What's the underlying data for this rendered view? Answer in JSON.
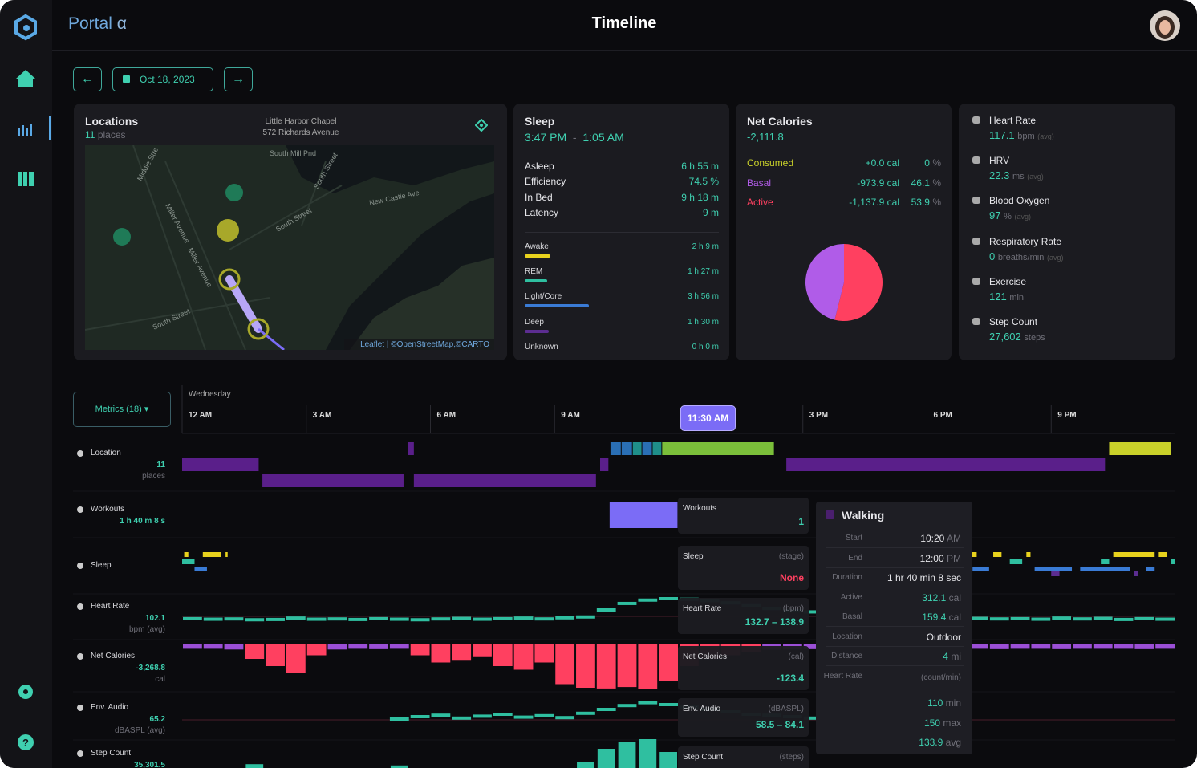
{
  "header": {
    "brand": "Portal",
    "brand_suffix": "α",
    "title": "Timeline"
  },
  "date": "Oct 18, 2023",
  "locations": {
    "title": "Locations",
    "count": "11",
    "count_unit": "places",
    "place_name": "Little Harbor Chapel",
    "place_address": "572 Richards Avenue",
    "map_labels": [
      "Middle Stre",
      "Miller Avenue",
      "Miller Avenue",
      "South Mill Pnd",
      "South Street",
      "South Street",
      "New Castle Ave",
      "South Street"
    ],
    "attribution": "Leaflet | ©OpenStreetMap,©CARTO"
  },
  "sleep": {
    "title": "Sleep",
    "start": "3:47 PM",
    "separator": "-",
    "end": "1:05 AM",
    "summary": [
      {
        "label": "Asleep",
        "value": "6 h 55 m"
      },
      {
        "label": "Efficiency",
        "value": "74.5 %"
      },
      {
        "label": "In Bed",
        "value": "9 h 18 m"
      },
      {
        "label": "Latency",
        "value": "9 m"
      }
    ],
    "stages": [
      {
        "label": "Awake",
        "value": "2 h 9 m",
        "color": "#e8d21d"
      },
      {
        "label": "REM",
        "value": "1 h 27 m",
        "color": "#2fbfa0"
      },
      {
        "label": "Light/Core",
        "value": "3 h 56 m",
        "color": "#3a7bd5"
      },
      {
        "label": "Deep",
        "value": "1 h 30 m",
        "color": "#5c2d91"
      },
      {
        "label": "Unknown",
        "value": "0 h 0 m",
        "color": "#555555"
      }
    ]
  },
  "net_calories": {
    "title": "Net Calories",
    "total": "-2,111.8",
    "percent_unit": "%",
    "rows": [
      {
        "label": "Consumed",
        "value": "+0.0 cal",
        "percent": 0,
        "color": "#c9d12a"
      },
      {
        "label": "Basal",
        "value": "-973.9 cal",
        "percent": 46.1,
        "color": "#b05ce8"
      },
      {
        "label": "Active",
        "value": "-1,137.9 cal",
        "percent": 53.9,
        "color": "#ff4060"
      }
    ]
  },
  "vitals": [
    {
      "label": "Heart Rate",
      "value": "117.1",
      "unit": "bpm",
      "note": "(avg)"
    },
    {
      "label": "HRV",
      "value": "22.3",
      "unit": "ms",
      "note": "(avg)"
    },
    {
      "label": "Blood Oxygen",
      "value": "97",
      "unit": "%",
      "note": "(avg)"
    },
    {
      "label": "Respiratory Rate",
      "value": "0",
      "unit": "breaths/min",
      "note": "(avg)"
    },
    {
      "label": "Exercise",
      "value": "121",
      "unit": "min"
    },
    {
      "label": "Step Count",
      "value": "27,602",
      "unit": "steps"
    }
  ],
  "timeline": {
    "metrics_button": "Metrics (18)",
    "day": "Wednesday",
    "current_time": "11:30 AM",
    "xlim": [
      0,
      24
    ],
    "xticks": [
      {
        "value": 0,
        "label": "12 AM"
      },
      {
        "value": 3,
        "label": "3 AM"
      },
      {
        "value": 6,
        "label": "6 AM"
      },
      {
        "value": 9,
        "label": "9 AM"
      },
      {
        "value": 15,
        "label": "3 PM"
      },
      {
        "value": 18,
        "label": "6 PM"
      },
      {
        "value": 21,
        "label": "9 PM"
      }
    ],
    "rows": [
      {
        "label": "Location",
        "value": "11",
        "unit": "places"
      },
      {
        "label": "Workouts",
        "value": "1 h 40 m 8 s"
      },
      {
        "label": "Sleep"
      },
      {
        "label": "Heart Rate",
        "value": "102.1",
        "unit": "bpm (avg)"
      },
      {
        "label": "Net Calories",
        "value": "-3,268.8",
        "unit": "cal"
      },
      {
        "label": "Env. Audio",
        "value": "65.2",
        "unit": "dBASPL (avg)"
      },
      {
        "label": "Step Count",
        "value": "35,301.5"
      }
    ],
    "location_segments": [
      {
        "start": 0,
        "end": 1.85,
        "lane": 1,
        "color": "#5a1f8a"
      },
      {
        "start": 1.94,
        "end": 5.35,
        "lane": 2,
        "color": "#5a1f8a"
      },
      {
        "start": 5.45,
        "end": 5.6,
        "lane": 0,
        "color": "#5a1f8a"
      },
      {
        "start": 5.6,
        "end": 10.0,
        "lane": 2,
        "color": "#5a1f8a"
      },
      {
        "start": 10.1,
        "end": 10.3,
        "lane": 1,
        "color": "#5a1f8a"
      },
      {
        "start": 10.35,
        "end": 10.6,
        "lane": 0,
        "color": "#2a6fb5"
      },
      {
        "start": 10.62,
        "end": 10.87,
        "lane": 0,
        "color": "#2a6fb5"
      },
      {
        "start": 10.89,
        "end": 11.1,
        "lane": 0,
        "color": "#1f8f8a"
      },
      {
        "start": 11.12,
        "end": 11.35,
        "lane": 0,
        "color": "#2a6fb5"
      },
      {
        "start": 11.37,
        "end": 11.58,
        "lane": 0,
        "color": "#1f8f8a"
      },
      {
        "start": 11.6,
        "end": 14.3,
        "lane": 0,
        "color": "#7bbf3a"
      },
      {
        "start": 14.6,
        "end": 22.3,
        "lane": 1,
        "color": "#5a1f8a"
      },
      {
        "start": 22.4,
        "end": 23.9,
        "lane": 0,
        "color": "#c9d12a"
      }
    ],
    "workout_segments": [
      {
        "start": 10.33,
        "end": 11.97,
        "color": "#7b6cf6"
      }
    ],
    "sleep_segments": [
      {
        "start": 0.05,
        "end": 0.15,
        "stage": 0
      },
      {
        "start": 0.5,
        "end": 0.95,
        "stage": 0
      },
      {
        "start": 1.05,
        "end": 1.1,
        "stage": 0
      },
      {
        "start": 0.0,
        "end": 0.3,
        "stage": 1
      },
      {
        "start": 0.3,
        "end": 0.6,
        "stage": 2
      },
      {
        "start": 19.0,
        "end": 19.2,
        "stage": 0
      },
      {
        "start": 19.6,
        "end": 19.8,
        "stage": 0
      },
      {
        "start": 20.4,
        "end": 20.5,
        "stage": 0
      },
      {
        "start": 22.5,
        "end": 23.5,
        "stage": 0
      },
      {
        "start": 23.6,
        "end": 23.8,
        "stage": 0
      },
      {
        "start": 19.1,
        "end": 19.5,
        "stage": 2
      },
      {
        "start": 20.6,
        "end": 21.5,
        "stage": 2
      },
      {
        "start": 21.7,
        "end": 22.9,
        "stage": 2
      },
      {
        "start": 23.3,
        "end": 23.5,
        "stage": 2
      },
      {
        "start": 20.0,
        "end": 20.3,
        "stage": 1
      },
      {
        "start": 22.2,
        "end": 22.4,
        "stage": 1
      },
      {
        "start": 23.9,
        "end": 24.0,
        "stage": 1
      },
      {
        "start": 21.0,
        "end": 21.2,
        "stage": 3
      },
      {
        "start": 23.0,
        "end": 23.1,
        "stage": 3
      }
    ],
    "heart_rate": [
      64,
      62,
      63,
      60,
      61,
      66,
      62,
      63,
      61,
      64,
      62,
      60,
      63,
      65,
      62,
      64,
      66,
      63,
      67,
      70,
      95,
      118,
      130,
      135,
      133,
      128,
      120,
      110,
      100,
      92,
      88,
      84,
      80,
      76,
      72,
      70,
      68,
      66,
      65,
      63,
      64,
      62,
      66,
      63,
      65,
      61,
      64,
      62
    ],
    "net_calories": [
      -12,
      -12,
      -14,
      -40,
      -60,
      -80,
      -30,
      -14,
      -12,
      -13,
      -12,
      -30,
      -50,
      -45,
      -35,
      -60,
      -70,
      -50,
      -110,
      -120,
      -122,
      -118,
      -123,
      -100,
      -60,
      -40,
      -30,
      -20,
      -15,
      -14,
      -13,
      -12,
      -12,
      -13,
      -12,
      -12,
      -14,
      -12,
      -12,
      -13,
      -12,
      -12,
      -13,
      -12,
      -12,
      -12,
      -13,
      -12
    ],
    "env_audio": [
      null,
      null,
      null,
      null,
      null,
      null,
      null,
      null,
      null,
      null,
      50,
      55,
      58,
      52,
      56,
      60,
      54,
      57,
      53,
      62,
      70,
      78,
      84,
      80,
      75,
      70,
      65,
      60,
      58,
      55,
      52,
      50,
      48,
      46,
      45,
      44,
      43,
      42,
      null,
      null,
      null,
      null,
      null,
      null,
      null,
      null,
      null,
      null
    ],
    "step_count": [
      0,
      0,
      0,
      120,
      0,
      0,
      0,
      0,
      0,
      0,
      80,
      0,
      0,
      0,
      0,
      0,
      0,
      0,
      0,
      200,
      600,
      800,
      900,
      500,
      0,
      0,
      0,
      0,
      0,
      0,
      0,
      0,
      0,
      0,
      0,
      0,
      0,
      0,
      0,
      0,
      0,
      0,
      0,
      0,
      0,
      0,
      0,
      0
    ]
  },
  "tooltips": [
    {
      "label": "Workouts",
      "value": "1"
    },
    {
      "label": "Sleep",
      "unit": "(stage)",
      "value": "None"
    },
    {
      "label": "Heart Rate",
      "unit": "(bpm)",
      "value": "132.7 – 138.9"
    },
    {
      "label": "Net Calories",
      "unit": "(cal)",
      "value": "-123.4"
    },
    {
      "label": "Env. Audio",
      "unit": "(dBASPL)",
      "value": "58.5 – 84.1"
    },
    {
      "label": "Step Count",
      "unit": "(steps)"
    }
  ],
  "walking": {
    "title": "Walking",
    "rows": [
      {
        "label": "Start",
        "value": "10:20",
        "unit": "AM"
      },
      {
        "label": "End",
        "value": "12:00",
        "unit": "PM"
      },
      {
        "label": "Duration",
        "value": "1 hr 40 min 8 sec"
      },
      {
        "label": "Active",
        "value": "312.1",
        "unit": "cal"
      },
      {
        "label": "Basal",
        "value": "159.4",
        "unit": "cal"
      },
      {
        "label": "Location",
        "value": "Outdoor"
      },
      {
        "label": "Distance",
        "value": "4",
        "unit": "mi"
      },
      {
        "label": "Heart Rate",
        "unit": "(count/min)"
      }
    ],
    "heart_rate": [
      {
        "value": "110",
        "unit": "min"
      },
      {
        "value": "150",
        "unit": "max"
      },
      {
        "value": "133.9",
        "unit": "avg"
      }
    ]
  }
}
